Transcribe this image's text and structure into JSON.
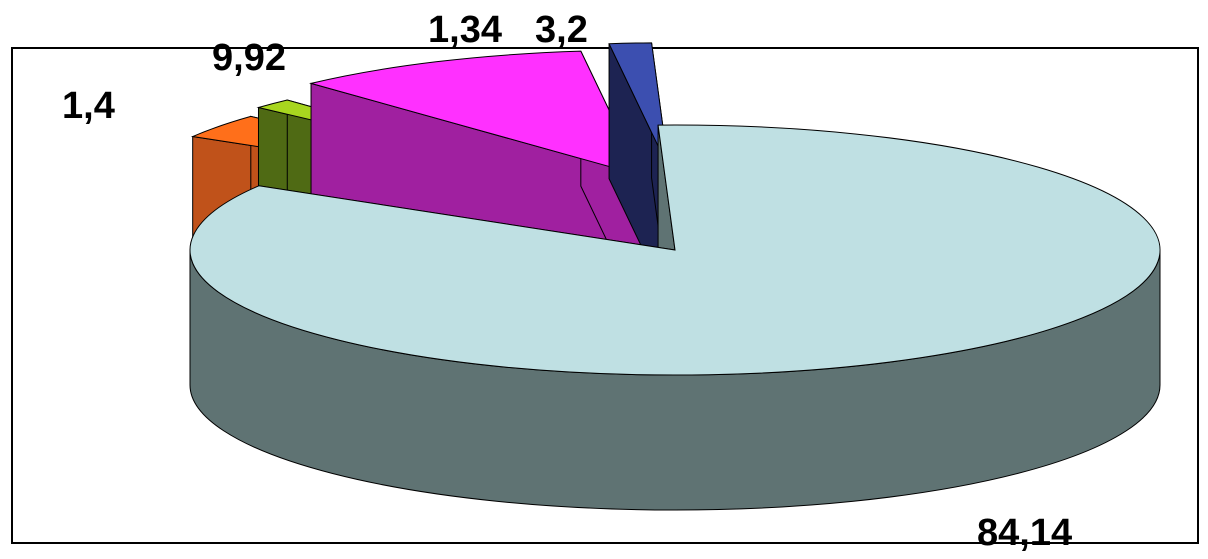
{
  "chart_data": {
    "type": "pie",
    "style": "3d-exploded",
    "title": "",
    "legend": "none",
    "slices": [
      {
        "value": 84.14,
        "label": "84,14",
        "top_color": "#bfe0e3",
        "side_color": "#5f7373"
      },
      {
        "value": 3.2,
        "label": "3,2",
        "top_color": "#ff6f1a",
        "side_color": "#c0521a"
      },
      {
        "value": 1.34,
        "label": "1,34",
        "top_color": "#a8d61f",
        "side_color": "#4f6a14"
      },
      {
        "value": 9.92,
        "label": "9,92",
        "top_color": "#ff30ff",
        "side_color": "#a020a0"
      },
      {
        "value": 1.4,
        "label": "1,4",
        "top_color": "#3c4fb0",
        "side_color": "#1d2352"
      }
    ]
  }
}
